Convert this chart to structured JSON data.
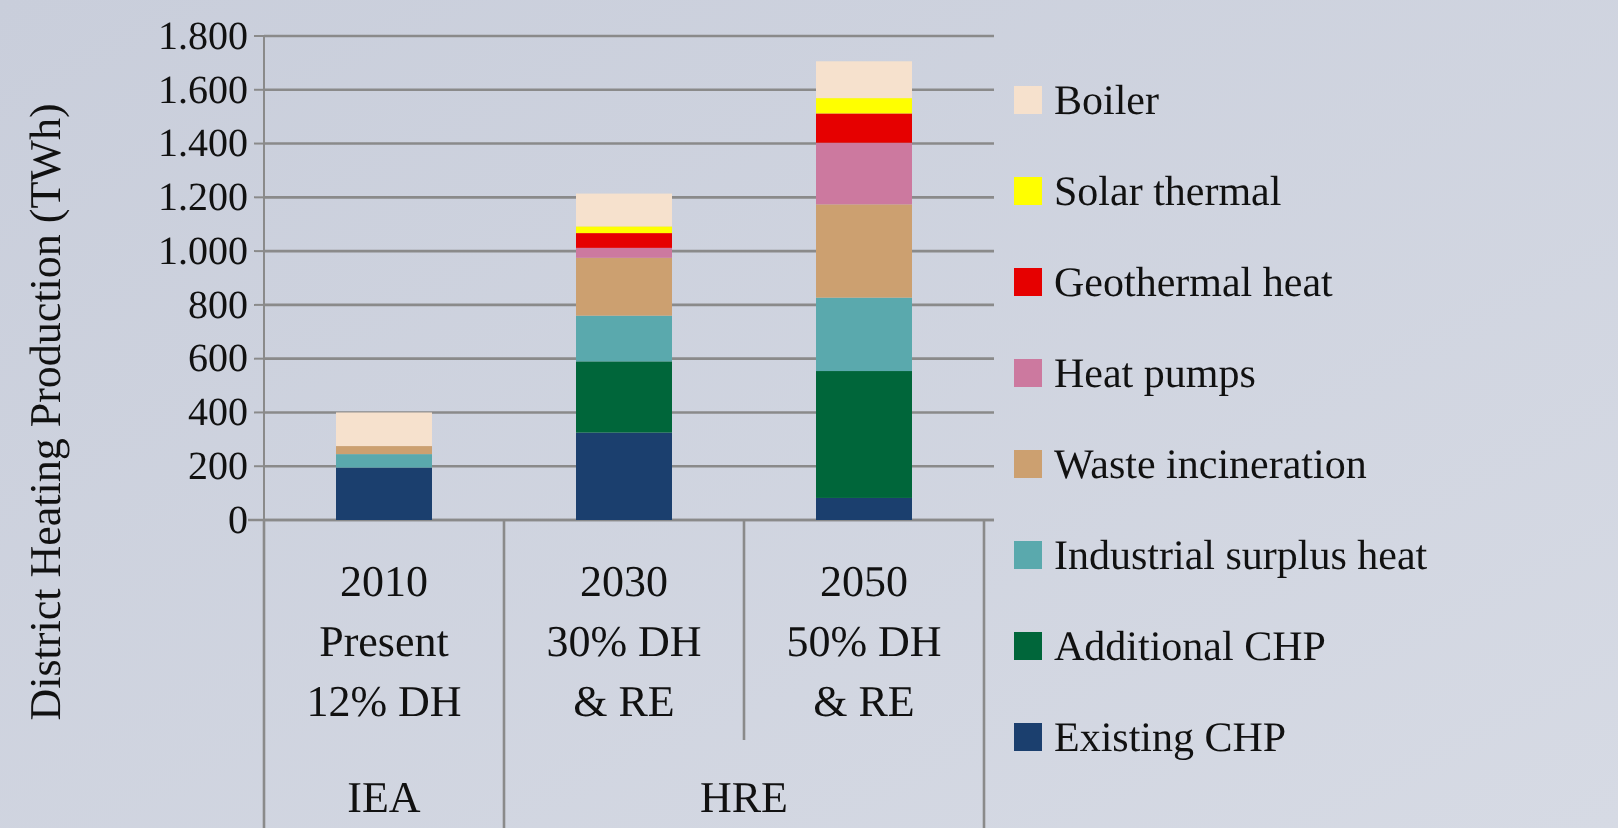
{
  "chart_data": {
    "type": "bar",
    "stacked": true,
    "ylabel": "District Heating Production (TWh)",
    "categories": [
      "2010\nPresent\n12% DH",
      "2030\n30% DH\n& RE",
      "2050\n50% DH\n& RE"
    ],
    "series": [
      {
        "name": "Existing CHP",
        "color": "#1b3f6e",
        "values": [
          195,
          325,
          82
        ]
      },
      {
        "name": "Additional CHP",
        "color": "#00663a",
        "values": [
          0,
          265,
          472
        ]
      },
      {
        "name": "Industrial surplus heat",
        "color": "#5aa9ad",
        "values": [
          50,
          170,
          273
        ]
      },
      {
        "name": "Waste incineration",
        "color": "#cca070",
        "values": [
          30,
          215,
          347
        ]
      },
      {
        "name": "Heat pumps",
        "color": "#cc799f",
        "values": [
          0,
          37,
          229
        ]
      },
      {
        "name": "Geothermal heat",
        "color": "#e60000",
        "values": [
          0,
          55,
          109
        ]
      },
      {
        "name": "Solar thermal",
        "color": "#ffff00",
        "values": [
          0,
          25,
          57
        ]
      },
      {
        "name": "Boiler",
        "color": "#f6e1cd",
        "values": [
          125,
          122,
          137
        ]
      }
    ],
    "ylim": [
      0,
      1800
    ],
    "yticks": [
      0,
      200,
      400,
      600,
      800,
      {
        "value": 1000,
        "label": "1.000"
      },
      {
        "value": 1200,
        "label": "1.200"
      },
      {
        "value": 1400,
        "label": "1.400"
      },
      {
        "value": 1600,
        "label": "1.600"
      },
      {
        "value": 1800,
        "label": "1.800"
      }
    ],
    "grid": "y",
    "legend": "right",
    "annotations": [
      "IEA",
      "HRE"
    ]
  }
}
